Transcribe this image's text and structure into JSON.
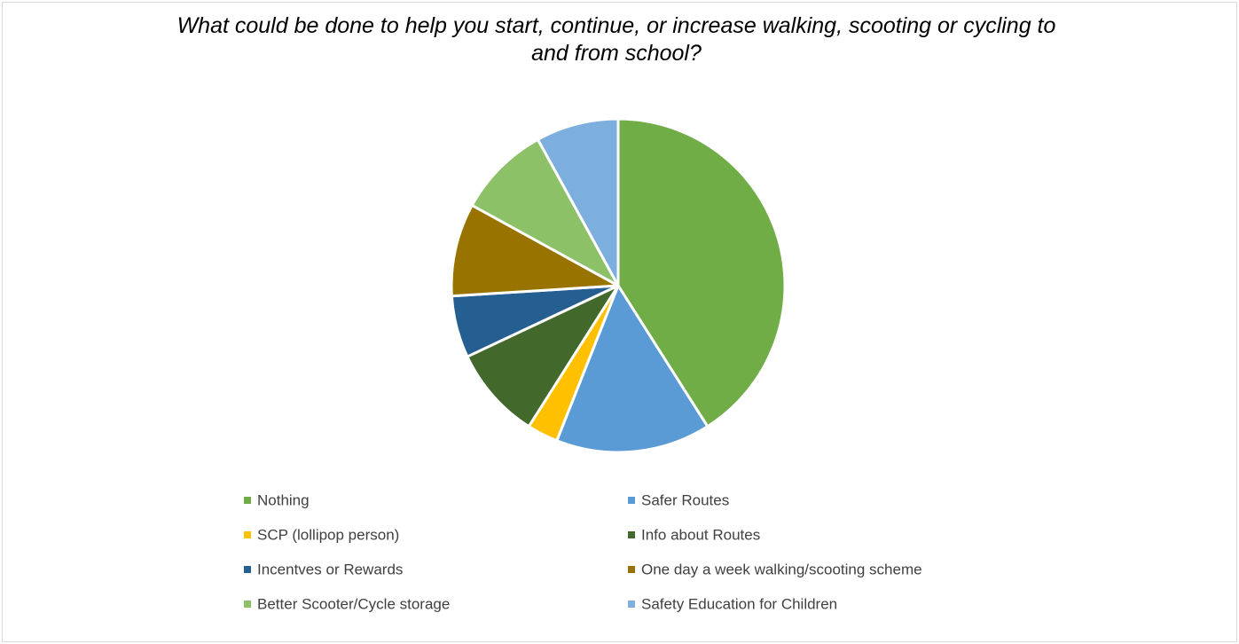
{
  "chart_data": {
    "type": "pie",
    "title": "What could be done to help you start, continue, or increase walking, scooting or cycling to and from school?",
    "categories": [
      "Nothing",
      "Safer Routes",
      "SCP (lollipop person)",
      "Info about Routes",
      "Incentves or Rewards",
      "One day a week walking/scooting scheme",
      "Better Scooter/Cycle storage",
      "Safety Education for Children"
    ],
    "values": [
      41,
      15,
      3,
      9,
      6,
      9,
      9,
      8
    ],
    "colors": [
      "#70ad47",
      "#5b9bd5",
      "#ffc000",
      "#43682b",
      "#255e91",
      "#997300",
      "#8cc168",
      "#7cafdd"
    ],
    "legend": "bottom"
  }
}
